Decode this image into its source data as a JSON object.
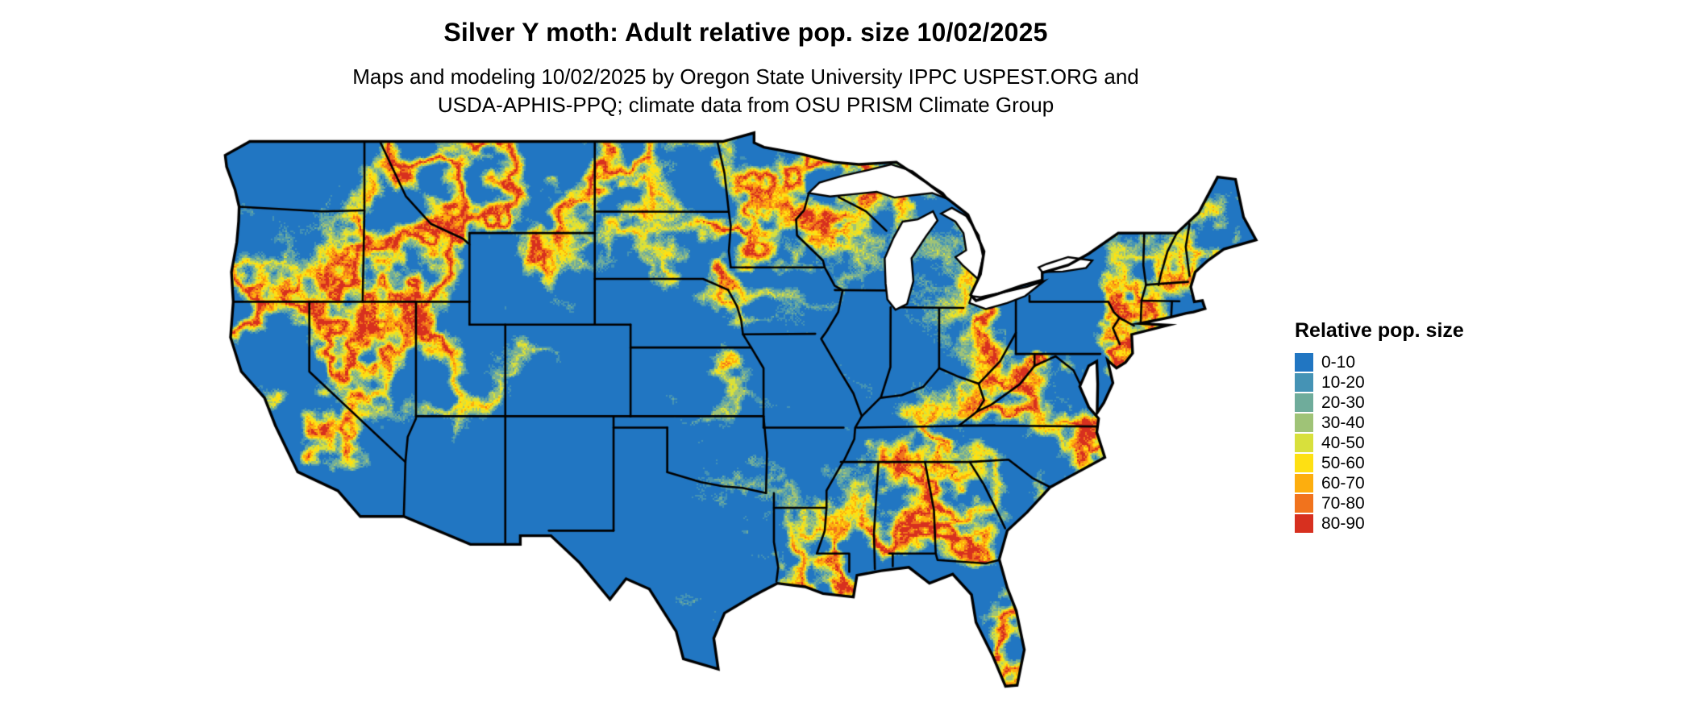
{
  "header": {
    "title": "Silver Y moth: Adult relative pop. size 10/02/2025",
    "subtitle_line1": "Maps and modeling 10/02/2025 by Oregon State University IPPC USPEST.ORG and",
    "subtitle_line2": "USDA-APHIS-PPQ; climate data from OSU PRISM Climate Group"
  },
  "map": {
    "region_label": "Continental United States",
    "water_color": "#ffffff",
    "boundary_color": "#000000",
    "background_color": "#ffffff"
  },
  "legend": {
    "title": "Relative pop. size",
    "items": [
      {
        "label": "0-10",
        "color": "#2176c2"
      },
      {
        "label": "10-20",
        "color": "#4593b5"
      },
      {
        "label": "20-30",
        "color": "#6fac9b"
      },
      {
        "label": "30-40",
        "color": "#9fc377"
      },
      {
        "label": "40-50",
        "color": "#d8e03c"
      },
      {
        "label": "50-60",
        "color": "#fee013"
      },
      {
        "label": "60-70",
        "color": "#fdae0e"
      },
      {
        "label": "70-80",
        "color": "#f1731d"
      },
      {
        "label": "80-90",
        "color": "#d7301f"
      }
    ]
  }
}
